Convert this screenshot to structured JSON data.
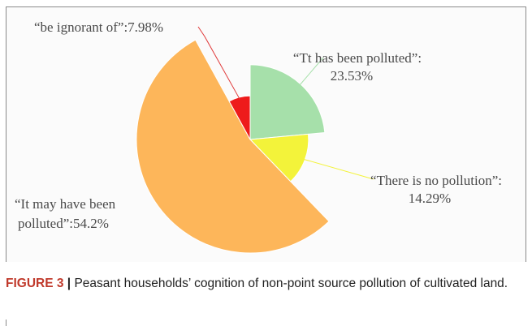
{
  "chart_data": {
    "type": "pie",
    "title": "",
    "style": "rose (polar area) pie, clockwise from 12 o'clock",
    "series": [
      {
        "label": "“Tt has been polluted”:",
        "value_text": "23.53%",
        "value": 23.53,
        "color": "#a6e0aa"
      },
      {
        "label": "“There is no pollution”:",
        "value_text": "14.29%",
        "value": 14.29,
        "color": "#f3f33a"
      },
      {
        "label": "“It may have been",
        "label_line2": "polluted”:54.2%",
        "value_text": "",
        "value": 54.2,
        "color": "#fdb65a"
      },
      {
        "label": "“be ignorant of”:7.98%",
        "value_text": "",
        "value": 7.98,
        "color": "#ee1b1b"
      }
    ]
  },
  "caption": {
    "prefix": "FIGURE 3",
    "separator": " | ",
    "text": "Peasant households’ cognition of non-point source pollution of cultivated land."
  }
}
